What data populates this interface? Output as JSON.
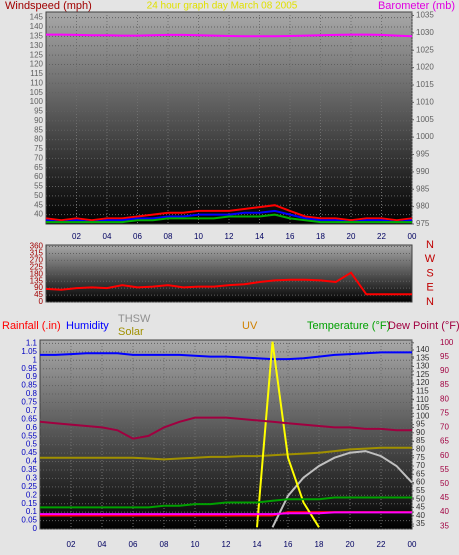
{
  "chart_data": [
    {
      "type": "line",
      "title": "24 hour graph day    March 08 2005",
      "ylabel": "Windspeed (mph)",
      "y2label": "Barometer (mb)",
      "x": [
        0,
        1,
        2,
        3,
        4,
        5,
        6,
        7,
        8,
        9,
        10,
        11,
        12,
        13,
        14,
        15,
        16,
        17,
        18,
        19,
        20,
        21,
        22,
        23,
        24
      ],
      "xlim": [
        0,
        24
      ],
      "xticks": [
        {
          "value": 2,
          "label": "02"
        },
        {
          "value": 4,
          "label": "04"
        },
        {
          "value": 6,
          "label": "06"
        },
        {
          "value": 8,
          "label": "08"
        },
        10,
        12,
        14,
        16,
        18,
        20,
        22,
        {
          "value": 24,
          "label": "00"
        }
      ],
      "ylim": [
        35,
        148
      ],
      "yticks": [
        40,
        45,
        50,
        55,
        60,
        65,
        70,
        75,
        80,
        85,
        90,
        95,
        100,
        105,
        110,
        115,
        120,
        125,
        130,
        135,
        140,
        145
      ],
      "y2lim": [
        975,
        1036
      ],
      "y2ticks": [
        975,
        980,
        985,
        990,
        995,
        1000,
        1005,
        1010,
        1015,
        1020,
        1025,
        1030,
        1035
      ],
      "series": [
        {
          "color": "#ff0000",
          "values": [
            38,
            37,
            38,
            37,
            38,
            38,
            39,
            40,
            41,
            41,
            42,
            42,
            42,
            43,
            44,
            45,
            42,
            39,
            38,
            38,
            37,
            38,
            38,
            37,
            38
          ]
        },
        {
          "color": "#0000ff",
          "values": [
            37,
            36,
            37,
            36,
            37,
            37,
            38,
            38,
            39,
            39,
            40,
            40,
            40,
            41,
            41,
            42,
            40,
            38,
            37,
            37,
            36,
            37,
            37,
            36,
            37
          ]
        },
        {
          "color": "#00b000",
          "values": [
            36,
            36,
            36,
            36,
            36,
            36,
            37,
            37,
            38,
            38,
            38,
            38,
            39,
            39,
            39,
            40,
            38,
            37,
            36,
            36,
            36,
            36,
            36,
            36,
            36
          ]
        },
        {
          "color": "#ff00ff",
          "axis": "y2",
          "values": [
            1029.5,
            1029.5,
            1029.4,
            1029.3,
            1029.3,
            1029.2,
            1029.2,
            1029.3,
            1029.4,
            1029.4,
            1029.3,
            1029.2,
            1029.1,
            1029.0,
            1029.0,
            1029.0,
            1029.1,
            1029.2,
            1029.3,
            1029.4,
            1029.5,
            1029.5,
            1029.4,
            1029.2,
            1029.0
          ]
        }
      ]
    },
    {
      "type": "line",
      "x": [
        0,
        1,
        2,
        3,
        4,
        5,
        6,
        7,
        8,
        9,
        10,
        11,
        12,
        13,
        14,
        15,
        16,
        17,
        18,
        19,
        20,
        21,
        22,
        23,
        24
      ],
      "xlim": [
        0,
        24
      ],
      "ylim": [
        0,
        370
      ],
      "yticks": [
        0,
        45,
        90,
        135,
        180,
        225,
        270,
        315,
        360
      ],
      "direction_labels": [
        "N",
        "W",
        "S",
        "E",
        "N"
      ],
      "series": [
        {
          "color": "#ff0000",
          "values": [
            85,
            80,
            90,
            95,
            90,
            110,
            95,
            100,
            110,
            95,
            100,
            100,
            110,
            115,
            130,
            140,
            145,
            145,
            140,
            130,
            190,
            50,
            50,
            50,
            50
          ]
        }
      ]
    },
    {
      "type": "line",
      "x": [
        0,
        1,
        2,
        3,
        4,
        5,
        6,
        7,
        8,
        9,
        10,
        11,
        12,
        13,
        14,
        15,
        16,
        17,
        18,
        19,
        20,
        21,
        22,
        23,
        24
      ],
      "xlim": [
        0,
        24
      ],
      "xticks": [
        {
          "value": 2,
          "label": "02"
        },
        {
          "value": 4,
          "label": "04"
        },
        {
          "value": 6,
          "label": "06"
        },
        {
          "value": 8,
          "label": "08"
        },
        10,
        12,
        14,
        16,
        18,
        20,
        22,
        {
          "value": 24,
          "label": "00"
        }
      ],
      "ylim": [
        0,
        1.12
      ],
      "yticks": [
        0,
        0.05,
        0.1,
        0.15,
        0.2,
        0.25,
        0.3,
        0.35,
        0.4,
        0.45,
        0.5,
        0.55,
        0.6,
        0.65,
        0.7,
        0.75,
        0.8,
        0.85,
        0.9,
        0.95,
        1,
        1.05,
        1.1
      ],
      "y2lim": [
        32,
        146
      ],
      "y2ticks": [
        35,
        40,
        45,
        50,
        55,
        60,
        65,
        70,
        75,
        80,
        85,
        90,
        95,
        100,
        105,
        110,
        115,
        120,
        125,
        130,
        135,
        140
      ],
      "y3lim": [
        34,
        101
      ],
      "y3ticks": [
        35,
        40,
        45,
        50,
        55,
        60,
        65,
        70,
        75,
        80,
        85,
        90,
        95,
        100
      ],
      "series": [
        {
          "name": "Rainfall (.in)",
          "color": "#ff0000",
          "values": [
            0.08,
            0.08,
            0.08,
            0.08,
            0.08,
            0.08,
            0.08,
            0.08,
            0.08,
            0.08,
            0.08,
            0.08,
            0.08,
            0.08,
            0.08,
            0.08,
            0.1,
            0.1,
            0.1,
            0.1,
            0.1,
            0.1,
            0.1,
            0.1,
            0.1
          ]
        },
        {
          "name": "Humidity",
          "color": "#0000ff",
          "axis": "y2",
          "values": [
            137,
            137,
            137.5,
            138,
            138,
            138,
            137,
            137,
            137,
            137,
            136.5,
            136,
            136,
            135.5,
            135,
            134.5,
            134.5,
            135,
            136,
            137,
            137.5,
            138,
            138.5,
            138.5,
            138.5
          ]
        },
        {
          "name": "THSW",
          "color": "#c0c0c0",
          "axis": "y2",
          "values": [
            null,
            null,
            null,
            null,
            null,
            null,
            null,
            null,
            null,
            null,
            null,
            null,
            null,
            null,
            null,
            33,
            52,
            63,
            70,
            75,
            78,
            79,
            76,
            70,
            60
          ]
        },
        {
          "name": "Solar",
          "color": "#a09000",
          "axis": "y2",
          "values": [
            75,
            75,
            75,
            75,
            75,
            75,
            75,
            74.5,
            74,
            74.5,
            75,
            75.5,
            75.5,
            76,
            76,
            76.5,
            77,
            77.5,
            78,
            79,
            80,
            80.5,
            81,
            81,
            81
          ]
        },
        {
          "name": "UV",
          "color": "#ffff00",
          "axis": "y2",
          "values": [
            null,
            null,
            null,
            null,
            null,
            null,
            null,
            null,
            null,
            null,
            null,
            null,
            null,
            null,
            33,
            145,
            75,
            48,
            33,
            null,
            null,
            null,
            null,
            null,
            null
          ]
        },
        {
          "name": "Temperature (°F)",
          "color": "#00a000",
          "axis": "y2",
          "values": [
            45,
            45,
            45,
            45,
            45,
            45,
            45,
            45,
            46,
            46,
            47,
            47,
            48,
            48,
            48,
            49,
            50,
            50,
            50,
            51,
            51,
            51,
            51,
            51,
            51
          ]
        },
        {
          "name": "Dew Point (°F)",
          "color": "#a00040",
          "axis": "y3",
          "values": [
            72,
            71.5,
            71,
            70.5,
            70,
            69,
            66,
            67,
            70,
            72,
            73.5,
            73.5,
            73.5,
            73,
            72.5,
            72,
            71.5,
            71,
            70.5,
            70,
            70,
            69.5,
            69.5,
            69,
            69
          ]
        },
        {
          "color": "#ff00ff",
          "axis": "y2",
          "values": [
            41,
            41,
            41,
            41,
            41,
            41,
            41,
            41,
            41,
            41,
            41,
            41,
            41,
            41,
            41,
            41,
            41.5,
            41.5,
            41.5,
            42,
            42,
            42,
            42,
            42,
            42
          ]
        }
      ]
    }
  ]
}
